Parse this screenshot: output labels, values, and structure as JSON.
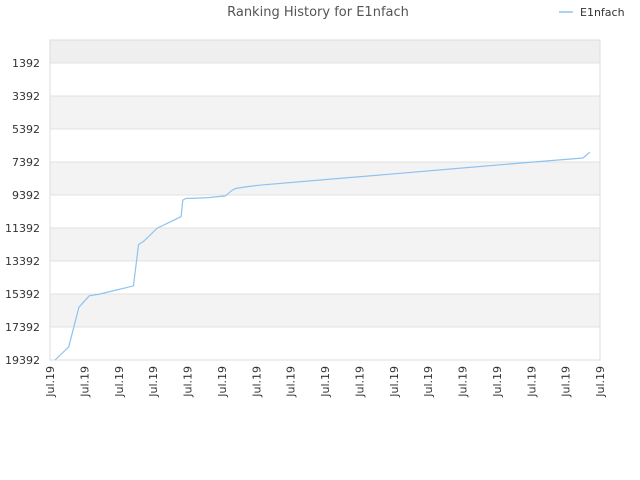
{
  "chart_data": {
    "type": "line",
    "title": "Ranking History for E1nfach",
    "xlabel": "",
    "ylabel": "",
    "y_inverted": true,
    "ylim": [
      19392,
      0
    ],
    "y_ticks": [
      1392,
      3392,
      5392,
      7392,
      9392,
      11392,
      13392,
      15392,
      17392,
      19392
    ],
    "x_tick_labels": [
      "Jul.19",
      "Jul.19",
      "Jul.19",
      "Jul.19",
      "Jul.19",
      "Jul.19",
      "Jul.19",
      "Jul.19",
      "Jul.19",
      "Jul.19",
      "Jul.19",
      "Jul.19",
      "Jul.19",
      "Jul.19",
      "Jul.19",
      "Jul.19",
      "Jul.19"
    ],
    "legend_position": "top-right",
    "grid": true,
    "series": [
      {
        "name": "E1nfach",
        "color": "#8ec3f0",
        "x": [
          0.0,
          0.4,
          0.7,
          1.0,
          1.3,
          2.3,
          2.35,
          2.45,
          2.6,
          3.0,
          3.5,
          3.7,
          3.75,
          3.85,
          4.0,
          4.5,
          5.0,
          5.2,
          5.3,
          5.6,
          6.0,
          8.0,
          10.0,
          12.0,
          14.0,
          15.5,
          15.7
        ],
        "values": [
          19392,
          18600,
          16200,
          15500,
          15400,
          14900,
          14100,
          12400,
          12200,
          11400,
          10900,
          10700,
          9700,
          9600,
          9600,
          9550,
          9450,
          9100,
          9000,
          8900,
          8800,
          8450,
          8100,
          7750,
          7400,
          7150,
          6800
        ]
      }
    ]
  }
}
